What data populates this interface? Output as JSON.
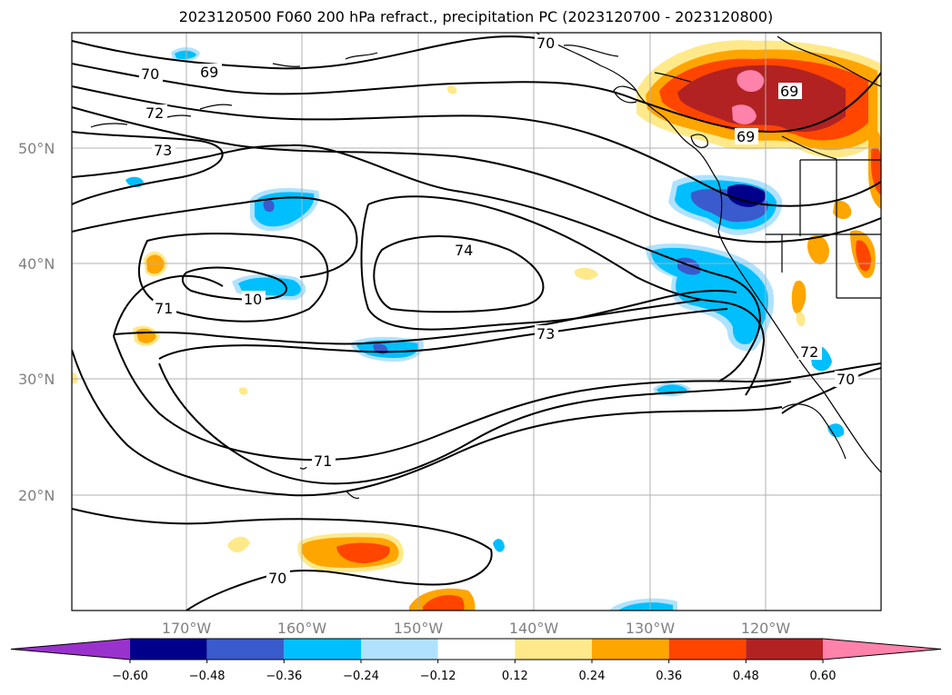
{
  "title": "2023120500 F060 200 hPa refract., precipitation PC (2023120700 - 2023120800)",
  "lat_labels": [
    "50°N",
    "40°N",
    "30°N",
    "20°N"
  ],
  "lon_labels": [
    "170°W",
    "160°W",
    "150°W",
    "140°W",
    "130°W",
    "120°W"
  ],
  "contour_labels": [
    "70",
    "69",
    "70",
    "72",
    "73",
    "69",
    "69",
    "74",
    "10",
    "71",
    "73",
    "71",
    "70",
    "72",
    "70"
  ],
  "colorbar": {
    "ticks": [
      "−0.60",
      "−0.48",
      "−0.36",
      "−0.24",
      "−0.12",
      "0.12",
      "0.24",
      "0.36",
      "0.48",
      "0.60"
    ],
    "colors": [
      "#9932cc",
      "#00008b",
      "#3a5bcd",
      "#00bfff",
      "#b0e2ff",
      "#ffffff",
      "#ffe98a",
      "#ffa500",
      "#ff4500",
      "#b22222",
      "#ff82ab"
    ]
  }
}
